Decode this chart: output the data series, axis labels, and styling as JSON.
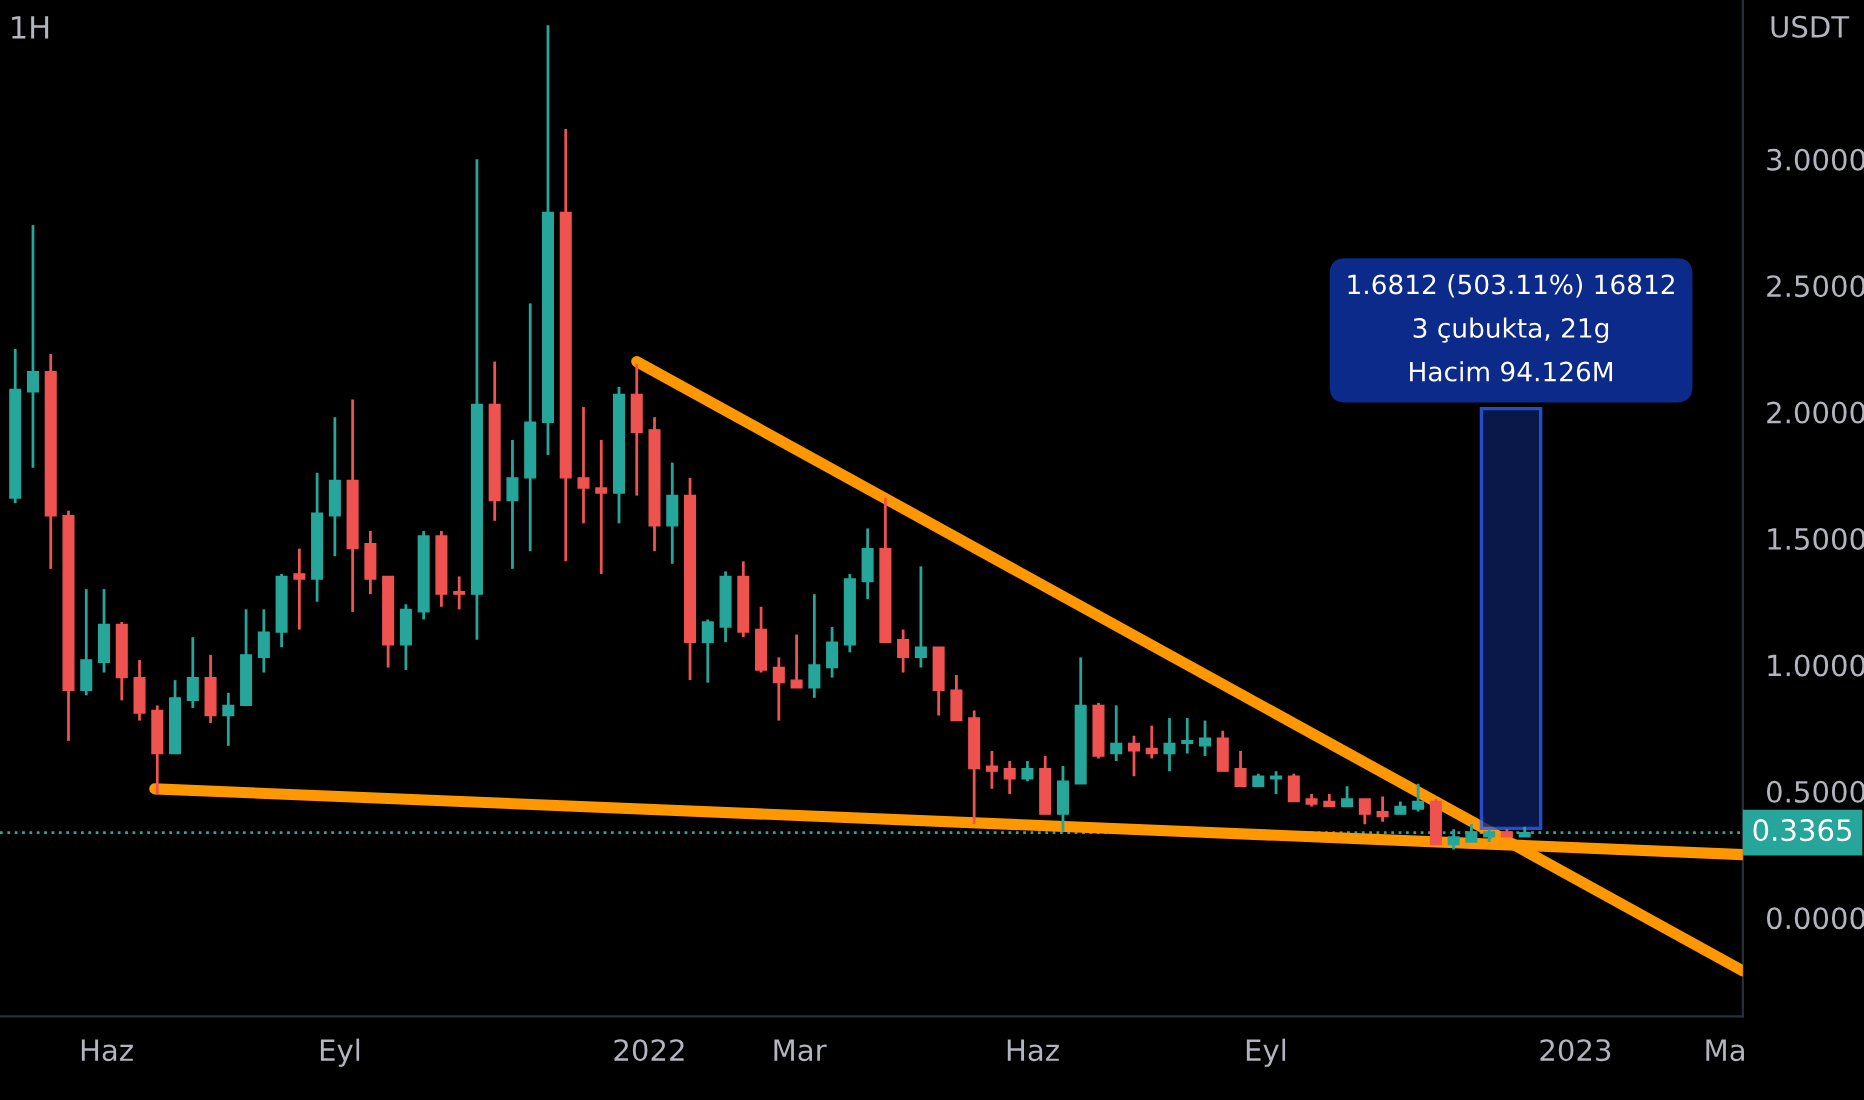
{
  "chart_data": {
    "type": "candlestick",
    "title": "1H",
    "ylabel": "USDT",
    "x": [
      "2021-04-26",
      "2021-05-03",
      "2021-05-10",
      "2021-05-17",
      "2021-05-24",
      "2021-05-31",
      "2021-06-07",
      "2021-06-14",
      "2021-06-21",
      "2021-06-28",
      "2021-07-05",
      "2021-07-12",
      "2021-07-19",
      "2021-07-26",
      "2021-08-02",
      "2021-08-09",
      "2021-08-16",
      "2021-08-23",
      "2021-08-30",
      "2021-09-06",
      "2021-09-13",
      "2021-09-20",
      "2021-09-27",
      "2021-10-04",
      "2021-10-11",
      "2021-10-18",
      "2021-10-25",
      "2021-11-01",
      "2021-11-08",
      "2021-11-15",
      "2021-11-22",
      "2021-11-29",
      "2021-12-06",
      "2021-12-13",
      "2021-12-20",
      "2021-12-27",
      "2022-01-03",
      "2022-01-10",
      "2022-01-17",
      "2022-01-24",
      "2022-01-31",
      "2022-02-07",
      "2022-02-14",
      "2022-02-21",
      "2022-02-28",
      "2022-03-07",
      "2022-03-14",
      "2022-03-21",
      "2022-03-28",
      "2022-04-04",
      "2022-04-11",
      "2022-04-18",
      "2022-04-25",
      "2022-05-02",
      "2022-05-09",
      "2022-05-16",
      "2022-05-23",
      "2022-05-30",
      "2022-06-06",
      "2022-06-13",
      "2022-06-20",
      "2022-06-27",
      "2022-07-04",
      "2022-07-11",
      "2022-07-18",
      "2022-07-25",
      "2022-08-01",
      "2022-08-08",
      "2022-08-15",
      "2022-08-22",
      "2022-08-29",
      "2022-09-05",
      "2022-09-12",
      "2022-09-19",
      "2022-09-26",
      "2022-10-03",
      "2022-10-10",
      "2022-10-17",
      "2022-10-24",
      "2022-10-31",
      "2022-11-07",
      "2022-11-14",
      "2022-11-21",
      "2022-11-28",
      "2022-12-05",
      "2022-12-12"
    ],
    "ohlc": [
      [
        1.66,
        2.25,
        1.64,
        2.09
      ],
      [
        2.08,
        2.74,
        1.78,
        2.16
      ],
      [
        2.16,
        2.23,
        1.38,
        1.59
      ],
      [
        1.59,
        1.61,
        0.7,
        0.9
      ],
      [
        0.9,
        1.3,
        0.88,
        1.02
      ],
      [
        1.01,
        1.3,
        0.97,
        1.16
      ],
      [
        1.16,
        1.17,
        0.86,
        0.95
      ],
      [
        0.95,
        1.02,
        0.78,
        0.81
      ],
      [
        0.82,
        0.84,
        0.49,
        0.65
      ],
      [
        0.65,
        0.94,
        0.65,
        0.87
      ],
      [
        0.86,
        1.11,
        0.83,
        0.95
      ],
      [
        0.95,
        1.04,
        0.77,
        0.8
      ],
      [
        0.8,
        0.89,
        0.68,
        0.84
      ],
      [
        0.84,
        1.22,
        0.84,
        1.04
      ],
      [
        1.03,
        1.22,
        0.97,
        1.13
      ],
      [
        1.13,
        1.36,
        1.07,
        1.35
      ],
      [
        1.36,
        1.46,
        1.14,
        1.34
      ],
      [
        1.34,
        1.76,
        1.25,
        1.6
      ],
      [
        1.59,
        1.98,
        1.43,
        1.73
      ],
      [
        1.73,
        2.05,
        1.21,
        1.46
      ],
      [
        1.48,
        1.53,
        1.28,
        1.34
      ],
      [
        1.35,
        1.35,
        0.99,
        1.08
      ],
      [
        1.08,
        1.24,
        0.98,
        1.22
      ],
      [
        1.21,
        1.53,
        1.18,
        1.51
      ],
      [
        1.51,
        1.53,
        1.23,
        1.28
      ],
      [
        1.29,
        1.35,
        1.22,
        1.28
      ],
      [
        1.28,
        3.0,
        1.1,
        2.03
      ],
      [
        2.03,
        2.2,
        1.57,
        1.65
      ],
      [
        1.65,
        1.89,
        1.38,
        1.74
      ],
      [
        1.74,
        2.43,
        1.45,
        1.96
      ],
      [
        1.96,
        3.53,
        1.83,
        2.79
      ],
      [
        2.79,
        3.12,
        1.41,
        1.74
      ],
      [
        1.74,
        2.02,
        1.56,
        1.7
      ],
      [
        1.7,
        1.89,
        1.36,
        1.68
      ],
      [
        1.68,
        2.1,
        1.56,
        2.07
      ],
      [
        2.07,
        2.19,
        1.67,
        1.92
      ],
      [
        1.93,
        1.98,
        1.45,
        1.55
      ],
      [
        1.55,
        1.8,
        1.4,
        1.67
      ],
      [
        1.67,
        1.74,
        0.94,
        1.09
      ],
      [
        1.09,
        1.18,
        0.93,
        1.17
      ],
      [
        1.15,
        1.37,
        1.09,
        1.35
      ],
      [
        1.35,
        1.41,
        1.11,
        1.13
      ],
      [
        1.14,
        1.23,
        0.97,
        0.98
      ],
      [
        0.99,
        1.03,
        0.78,
        0.93
      ],
      [
        0.94,
        1.12,
        0.91,
        0.91
      ],
      [
        0.91,
        1.28,
        0.87,
        1.0
      ],
      [
        0.99,
        1.15,
        0.95,
        1.09
      ],
      [
        1.08,
        1.36,
        1.05,
        1.34
      ],
      [
        1.33,
        1.54,
        1.26,
        1.46
      ],
      [
        1.46,
        1.66,
        1.09,
        1.09
      ],
      [
        1.1,
        1.14,
        0.97,
        1.03
      ],
      [
        1.03,
        1.39,
        0.99,
        1.07
      ],
      [
        1.07,
        1.07,
        0.8,
        0.9
      ],
      [
        0.9,
        0.96,
        0.78,
        0.78
      ],
      [
        0.79,
        0.82,
        0.37,
        0.59
      ],
      [
        0.6,
        0.66,
        0.51,
        0.58
      ],
      [
        0.59,
        0.62,
        0.49,
        0.55
      ],
      [
        0.55,
        0.62,
        0.54,
        0.59
      ],
      [
        0.59,
        0.64,
        0.41,
        0.41
      ],
      [
        0.41,
        0.6,
        0.34,
        0.54
      ],
      [
        0.53,
        1.03,
        0.53,
        0.84
      ],
      [
        0.84,
        0.85,
        0.63,
        0.64
      ],
      [
        0.65,
        0.84,
        0.62,
        0.69
      ],
      [
        0.69,
        0.72,
        0.56,
        0.66
      ],
      [
        0.67,
        0.76,
        0.63,
        0.65
      ],
      [
        0.65,
        0.79,
        0.58,
        0.69
      ],
      [
        0.69,
        0.79,
        0.65,
        0.7
      ],
      [
        0.68,
        0.78,
        0.64,
        0.71
      ],
      [
        0.71,
        0.74,
        0.58,
        0.58
      ],
      [
        0.59,
        0.66,
        0.52,
        0.52
      ],
      [
        0.52,
        0.57,
        0.52,
        0.56
      ],
      [
        0.55,
        0.58,
        0.49,
        0.56
      ],
      [
        0.56,
        0.57,
        0.46,
        0.46
      ],
      [
        0.47,
        0.49,
        0.44,
        0.45
      ],
      [
        0.46,
        0.49,
        0.44,
        0.44
      ],
      [
        0.44,
        0.52,
        0.44,
        0.47
      ],
      [
        0.47,
        0.47,
        0.37,
        0.41
      ],
      [
        0.42,
        0.48,
        0.38,
        0.4
      ],
      [
        0.41,
        0.46,
        0.41,
        0.44
      ],
      [
        0.43,
        0.53,
        0.42,
        0.46
      ],
      [
        0.46,
        0.47,
        0.29,
        0.29
      ],
      [
        0.29,
        0.35,
        0.27,
        0.32
      ],
      [
        0.3,
        0.37,
        0.3,
        0.34
      ],
      [
        0.32,
        0.35,
        0.3,
        0.34
      ],
      [
        0.34,
        0.35,
        0.32,
        0.32
      ],
      [
        0.32,
        0.36,
        0.32,
        0.3365
      ]
    ],
    "series": [
      {
        "type": "line",
        "color": "#ff9800",
        "x": [
          "2021-12-27",
          "2023-03-08"
        ],
        "values": [
          2.2,
          -0.21
        ]
      },
      {
        "type": "line",
        "color": "#ff9800",
        "x": [
          "2021-06-20",
          "2023-03-08"
        ],
        "values": [
          0.51,
          0.25
        ]
      }
    ],
    "xlim": [
      "2021-04-20",
      "2023-03-08"
    ],
    "xticks": [
      {
        "value": "2021-06-01",
        "label": "Haz"
      },
      {
        "value": "2021-09-01",
        "label": "Eyl"
      },
      {
        "value": "2022-01-01",
        "label": "2022"
      },
      {
        "value": "2022-03-01",
        "label": "Mar"
      },
      {
        "value": "2022-06-01",
        "label": "Haz"
      },
      {
        "value": "2022-09-01",
        "label": "Eyl"
      },
      {
        "value": "2023-01-01",
        "label": "2023"
      },
      {
        "value": "2023-03-01",
        "label": "Ma"
      }
    ],
    "ylim": [
      -0.39,
      3.63
    ],
    "yticks": [
      {
        "value": 0,
        "label": "0.0000"
      },
      {
        "value": 0.5,
        "label": "0.5000"
      },
      {
        "value": 1,
        "label": "1.0000"
      },
      {
        "value": 1.5,
        "label": "1.5000"
      },
      {
        "value": 2,
        "label": "2.0000"
      },
      {
        "value": 2.5,
        "label": "2.5000"
      },
      {
        "value": 3,
        "label": "3.0000"
      }
    ],
    "ref_lines": [
      {
        "axis": "y",
        "value": 0.3365,
        "label": "0.3365",
        "color": "#26a69a",
        "line_style": "dotted"
      }
    ],
    "annotations": [
      "1.6812 (503.11%) 16812\n3 çubukta, 21g\nHacim 94.126M"
    ],
    "grid": false,
    "legend": false
  }
}
